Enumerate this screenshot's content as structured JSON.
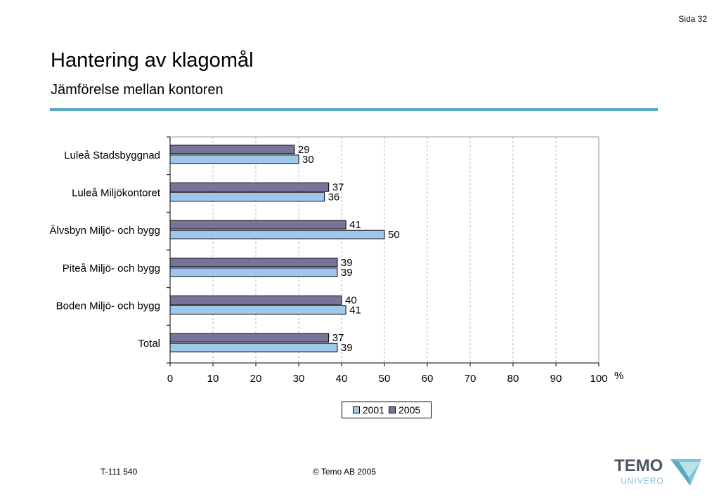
{
  "page": {
    "page_number": "Sida 32",
    "title": "Hantering av klagomål",
    "subtitle": "Jämförelse mellan kontoren"
  },
  "chart_data": {
    "type": "bar",
    "orientation": "horizontal",
    "categories": [
      "Luleå Stadsbyggnad",
      "Luleå Miljökontoret",
      "Älvsbyn Miljö- och bygg",
      "Piteå Miljö- och bygg",
      "Boden Miljö- och bygg",
      "Total"
    ],
    "series": [
      {
        "name": "2005",
        "values": [
          29,
          37,
          41,
          39,
          40,
          37
        ],
        "color": "#777399"
      },
      {
        "name": "2001",
        "values": [
          30,
          36,
          50,
          39,
          41,
          39
        ],
        "color": "#9fc7ec"
      }
    ],
    "legend_order": [
      "2001",
      "2005"
    ],
    "xlim": [
      0,
      100
    ],
    "xticks": [
      0,
      10,
      20,
      30,
      40,
      50,
      60,
      70,
      80,
      90,
      100
    ],
    "xunit": "%",
    "grid": "vertical dashed",
    "legend_position": "bottom",
    "data_labels": true
  },
  "legend": {
    "items": [
      {
        "label": "2001",
        "color": "#9fc7ec"
      },
      {
        "label": "2005",
        "color": "#777399"
      }
    ]
  },
  "footer": {
    "code": "T-111 540",
    "copyright": "©  Temo AB 2005"
  },
  "logo": {
    "word": "TEMO",
    "sub": "UNIVERO",
    "icon": "temo-triangle-icon"
  }
}
